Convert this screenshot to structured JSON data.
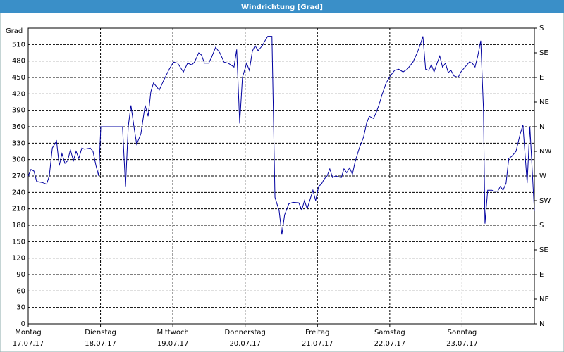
{
  "chart_data": {
    "type": "line",
    "title": "Windrichtung [Grad]",
    "y_label": "Grad",
    "xlim": [
      0,
      168
    ],
    "xticks": [
      0,
      24,
      48,
      72,
      96,
      120,
      144
    ],
    "xtick_labels": [
      [
        "Montag",
        "17.07.17"
      ],
      [
        "Dienstag",
        "18.07.17"
      ],
      [
        "Mittwoch",
        "19.07.17"
      ],
      [
        "Donnerstag",
        "20.07.17"
      ],
      [
        "Freitag",
        "21.07.17"
      ],
      [
        "Samstag",
        "22.07.17"
      ],
      [
        "Sonntag",
        "23.07.17"
      ]
    ],
    "ylim": [
      0,
      540
    ],
    "yticks": [
      0,
      30,
      60,
      90,
      120,
      150,
      180,
      210,
      240,
      270,
      300,
      330,
      360,
      390,
      420,
      450,
      480,
      510
    ],
    "y2lim": [
      0,
      540
    ],
    "y2ticks": [
      {
        "value": 0,
        "label": "N"
      },
      {
        "value": 45,
        "label": "NE"
      },
      {
        "value": 90,
        "label": "E"
      },
      {
        "value": 135,
        "label": "SE"
      },
      {
        "value": 180,
        "label": "S"
      },
      {
        "value": 225,
        "label": "SW"
      },
      {
        "value": 270,
        "label": "W"
      },
      {
        "value": 315,
        "label": "NW"
      },
      {
        "value": 360,
        "label": "N"
      },
      {
        "value": 405,
        "label": "NE"
      },
      {
        "value": 450,
        "label": "E"
      },
      {
        "value": 495,
        "label": "SE"
      },
      {
        "value": 540,
        "label": "S"
      }
    ],
    "grid": true,
    "color": "#0000a0",
    "x": [
      0,
      0.9,
      1.9,
      2.8,
      4.7,
      6.1,
      7.0,
      8.0,
      9.4,
      10.3,
      11.2,
      12.2,
      13.1,
      14.0,
      15.0,
      15.9,
      16.8,
      17.8,
      18.7,
      20.6,
      21.5,
      22.5,
      23.4,
      24.1,
      31.3,
      32.3,
      33.2,
      34.1,
      35.1,
      36.0,
      37.4,
      38.8,
      39.8,
      40.7,
      41.6,
      43.5,
      44.9,
      46.8,
      48.2,
      49.6,
      51.5,
      52.9,
      54.3,
      55.2,
      56.6,
      57.5,
      58.5,
      59.9,
      60.8,
      62.2,
      63.6,
      65.0,
      66.4,
      68.3,
      69.2,
      70.2,
      71.1,
      72.5,
      73.4,
      74.4,
      75.3,
      76.3,
      77.7,
      78.6,
      79.5,
      80.9,
      81.9,
      83.3,
      84.2,
      85.1,
      86.5,
      87.9,
      89.8,
      90.8,
      91.7,
      92.6,
      93.6,
      94.5,
      95.4,
      96.4,
      97.3,
      98.2,
      99.2,
      100.1,
      101.0,
      102.0,
      103.9,
      104.8,
      105.7,
      106.7,
      107.6,
      108.5,
      109.9,
      111.3,
      112.3,
      113.2,
      114.6,
      115.5,
      116.5,
      117.4,
      118.8,
      120.2,
      121.6,
      123.0,
      124.4,
      125.8,
      127.7,
      129.1,
      130.0,
      131.0,
      131.9,
      132.9,
      133.8,
      134.7,
      135.7,
      136.6,
      137.5,
      138.5,
      139.4,
      140.3,
      141.3,
      142.7,
      143.6,
      145.0,
      146.4,
      147.4,
      148.3,
      149.2,
      150.2,
      151.1,
      151.6,
      152.5,
      153.9,
      154.8,
      155.8,
      156.7,
      157.6,
      158.6,
      159.5,
      160.5,
      161.9,
      163.3,
      164.2,
      165.6,
      166.5,
      168.0
    ],
    "values": [
      270,
      282,
      279,
      260,
      258,
      255,
      270,
      321,
      334,
      289,
      311,
      293,
      298,
      318,
      298,
      315,
      302,
      321,
      319,
      321,
      315,
      289,
      270,
      360,
      360,
      251,
      360,
      399,
      360,
      328,
      347,
      399,
      379,
      424,
      440,
      427,
      444,
      465,
      478,
      476,
      460,
      476,
      473,
      478,
      495,
      491,
      476,
      476,
      486,
      505,
      495,
      478,
      476,
      469,
      501,
      366,
      450,
      476,
      463,
      498,
      508,
      499,
      508,
      517,
      525,
      525,
      231,
      206,
      163,
      199,
      219,
      222,
      221,
      208,
      225,
      210,
      228,
      244,
      225,
      251,
      255,
      264,
      270,
      283,
      267,
      270,
      267,
      283,
      276,
      285,
      273,
      296,
      321,
      341,
      366,
      379,
      375,
      386,
      401,
      418,
      440,
      453,
      463,
      465,
      460,
      465,
      478,
      495,
      508,
      525,
      465,
      463,
      473,
      460,
      476,
      489,
      469,
      476,
      459,
      463,
      453,
      450,
      460,
      469,
      478,
      476,
      469,
      489,
      517,
      392,
      183,
      244,
      244,
      242,
      242,
      251,
      244,
      257,
      302,
      306,
      315,
      347,
      363,
      257,
      360,
      206
    ]
  }
}
